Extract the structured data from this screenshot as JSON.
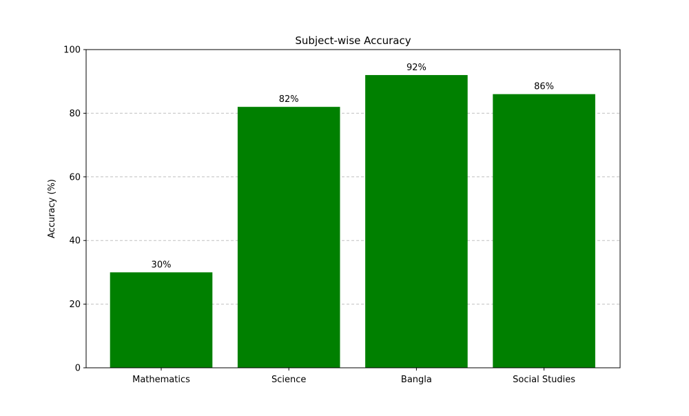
{
  "chart_data": {
    "type": "bar",
    "title": "Subject-wise Accuracy",
    "xlabel": "",
    "ylabel": "Accuracy (%)",
    "categories": [
      "Mathematics",
      "Science",
      "Bangla",
      "Social Studies"
    ],
    "values": [
      30,
      82,
      92,
      86
    ],
    "value_labels": [
      "30%",
      "82%",
      "92%",
      "86%"
    ],
    "ylim": [
      0,
      100
    ],
    "yticks": [
      0,
      20,
      40,
      60,
      80,
      100
    ],
    "ytick_labels": [
      "0",
      "20",
      "40",
      "60",
      "80",
      "100"
    ],
    "grid": "y-dashed",
    "legend": "none",
    "colors": {
      "bar": "#008000",
      "grid": "#c0c0c0",
      "axis": "#000000"
    }
  }
}
